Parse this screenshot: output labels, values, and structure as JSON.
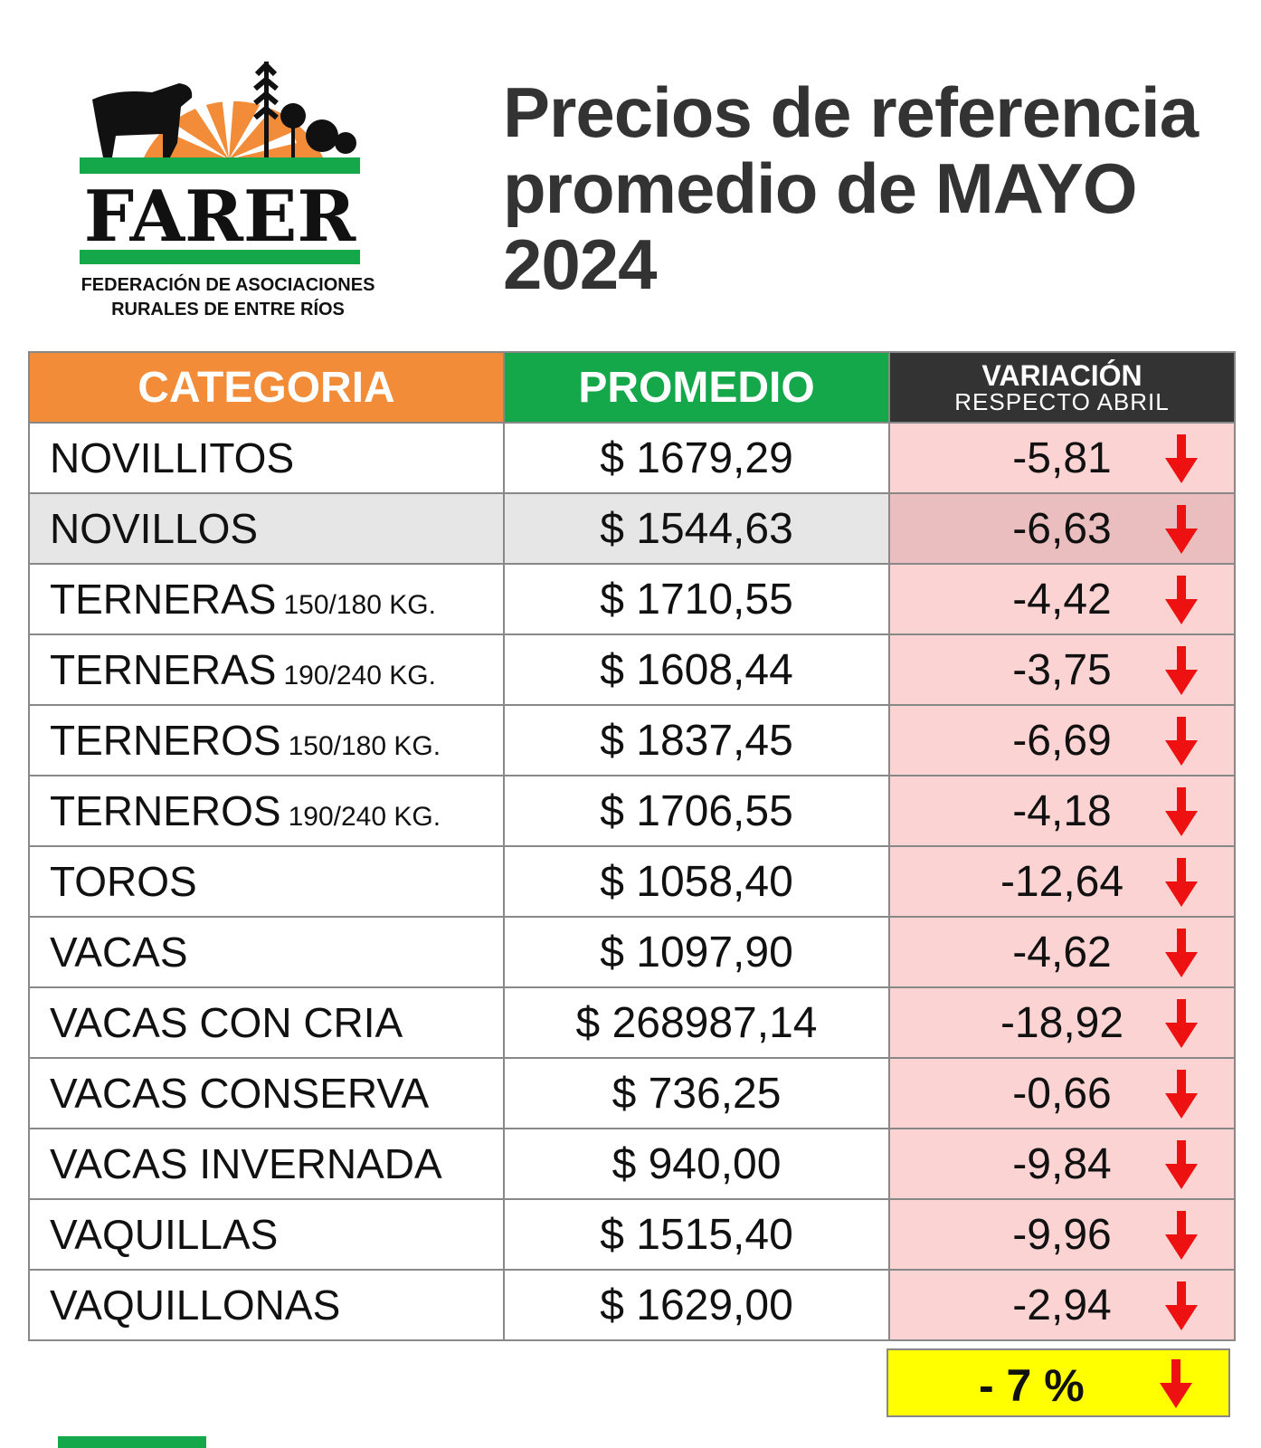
{
  "logo": {
    "wordmark": "FARER",
    "subtitle_line1": "FEDERACIÓN DE ASOCIACIONES",
    "subtitle_line2": "RURALES DE ENTRE RÍOS",
    "colors": {
      "orange": "#f28c38",
      "green": "#14a84b"
    }
  },
  "title": "Precios de referencia promedio de MAYO 2024",
  "table": {
    "headers": {
      "categoria": "CATEGORIA",
      "promedio": "PROMEDIO",
      "variacion": "VARIACIÓN",
      "variacion_sub": "RESPECTO ABRIL"
    },
    "rows": [
      {
        "categoria": "NOVILLITOS",
        "detalle": "",
        "promedio": "$ 1679,29",
        "variacion": "-5,81",
        "trend": "down"
      },
      {
        "categoria": "NOVILLOS",
        "detalle": "",
        "promedio": "$ 1544,63",
        "variacion": "-6,63",
        "trend": "down"
      },
      {
        "categoria": "TERNERAS",
        "detalle": "150/180 KG.",
        "promedio": "$ 1710,55",
        "variacion": "-4,42",
        "trend": "down"
      },
      {
        "categoria": "TERNERAS",
        "detalle": "190/240 KG.",
        "promedio": "$ 1608,44",
        "variacion": "-3,75",
        "trend": "down"
      },
      {
        "categoria": "TERNEROS",
        "detalle": "150/180 KG.",
        "promedio": "$ 1837,45",
        "variacion": "-6,69",
        "trend": "down"
      },
      {
        "categoria": "TERNEROS",
        "detalle": "190/240 KG.",
        "promedio": "$ 1706,55",
        "variacion": "-4,18",
        "trend": "down"
      },
      {
        "categoria": "TOROS",
        "detalle": "",
        "promedio": "$ 1058,40",
        "variacion": "-12,64",
        "trend": "down"
      },
      {
        "categoria": "VACAS",
        "detalle": "",
        "promedio": "$ 1097,90",
        "variacion": "-4,62",
        "trend": "down"
      },
      {
        "categoria": "VACAS CON CRIA",
        "detalle": "",
        "promedio": "$ 268987,14",
        "variacion": "-18,92",
        "trend": "down"
      },
      {
        "categoria": "VACAS CONSERVA",
        "detalle": "",
        "promedio": "$ 736,25",
        "variacion": "-0,66",
        "trend": "down"
      },
      {
        "categoria": "VACAS INVERNADA",
        "detalle": "",
        "promedio": "$ 940,00",
        "variacion": "-9,84",
        "trend": "down"
      },
      {
        "categoria": "VAQUILLAS",
        "detalle": "",
        "promedio": "$ 1515,40",
        "variacion": "-9,96",
        "trend": "down"
      },
      {
        "categoria": "VAQUILLONAS",
        "detalle": "",
        "promedio": "$ 1629,00",
        "variacion": "-2,94",
        "trend": "down"
      }
    ],
    "total": {
      "variacion": "- 7 %",
      "trend": "down"
    }
  },
  "colors": {
    "arrow": "#ee1111",
    "variation_bg": "#fcd3d3",
    "total_bg": "#ffff00",
    "header_dark": "#333333"
  }
}
